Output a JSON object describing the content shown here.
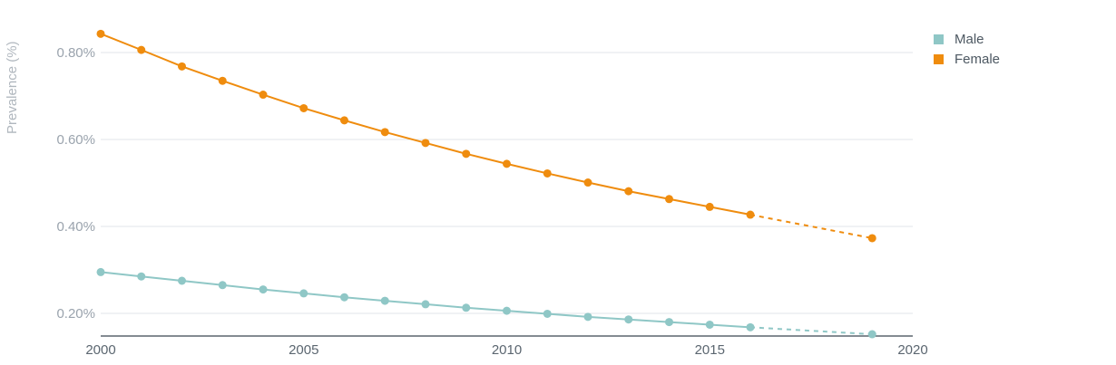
{
  "chart_data": {
    "type": "line",
    "xlabel": "",
    "ylabel": "Prevalence (%)",
    "xlim": [
      2000,
      2020
    ],
    "ylim": [
      0.15,
      0.85
    ],
    "x_ticks": [
      "2000",
      "2005",
      "2010",
      "2015",
      "2020"
    ],
    "y_ticks": [
      "0.20%",
      "0.40%",
      "0.60%",
      "0.80%"
    ],
    "y_tick_values": [
      0.2,
      0.4,
      0.6,
      0.8
    ],
    "grid": "horizontal",
    "legend_position": "top-right",
    "series": [
      {
        "name": "Male",
        "color": "#8fc7c6",
        "x": [
          2000,
          2001,
          2002,
          2003,
          2004,
          2005,
          2006,
          2007,
          2008,
          2009,
          2010,
          2011,
          2012,
          2013,
          2014,
          2015,
          2016,
          2019
        ],
        "y": [
          0.295,
          0.285,
          0.275,
          0.265,
          0.255,
          0.246,
          0.237,
          0.229,
          0.221,
          0.213,
          0.206,
          0.199,
          0.192,
          0.186,
          0.18,
          0.174,
          0.168,
          0.152
        ],
        "projected_from_index": 16
      },
      {
        "name": "Female",
        "color": "#ef8c0e",
        "x": [
          2000,
          2001,
          2002,
          2003,
          2004,
          2005,
          2006,
          2007,
          2008,
          2009,
          2010,
          2011,
          2012,
          2013,
          2014,
          2015,
          2016,
          2019
        ],
        "y": [
          0.843,
          0.806,
          0.768,
          0.735,
          0.703,
          0.672,
          0.644,
          0.617,
          0.592,
          0.567,
          0.544,
          0.522,
          0.501,
          0.481,
          0.463,
          0.445,
          0.427,
          0.373
        ],
        "projected_from_index": 16
      }
    ]
  }
}
